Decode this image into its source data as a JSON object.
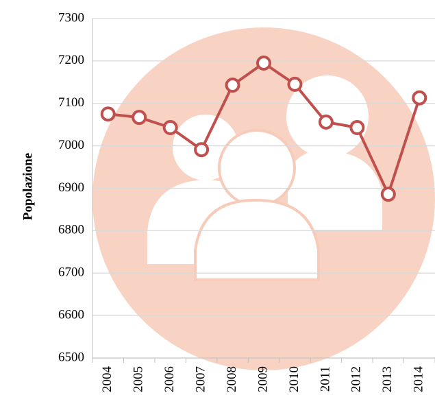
{
  "chart_data": {
    "type": "line",
    "y_label": "Popolazione",
    "categories": [
      "2004",
      "2005",
      "2006",
      "2007",
      "2008",
      "2009",
      "2010",
      "2011",
      "2012",
      "2013",
      "2014"
    ],
    "series": [
      {
        "name": "Popolazione",
        "color": "#c0504d",
        "values": [
          7075,
          7067,
          7043,
          6991,
          7143,
          7195,
          7145,
          7056,
          7043,
          6886,
          7113
        ]
      }
    ],
    "ylim": [
      6500,
      7300
    ],
    "yticks": [
      6500,
      6600,
      6700,
      6800,
      6900,
      7000,
      7100,
      7200,
      7300
    ],
    "grid": true
  }
}
